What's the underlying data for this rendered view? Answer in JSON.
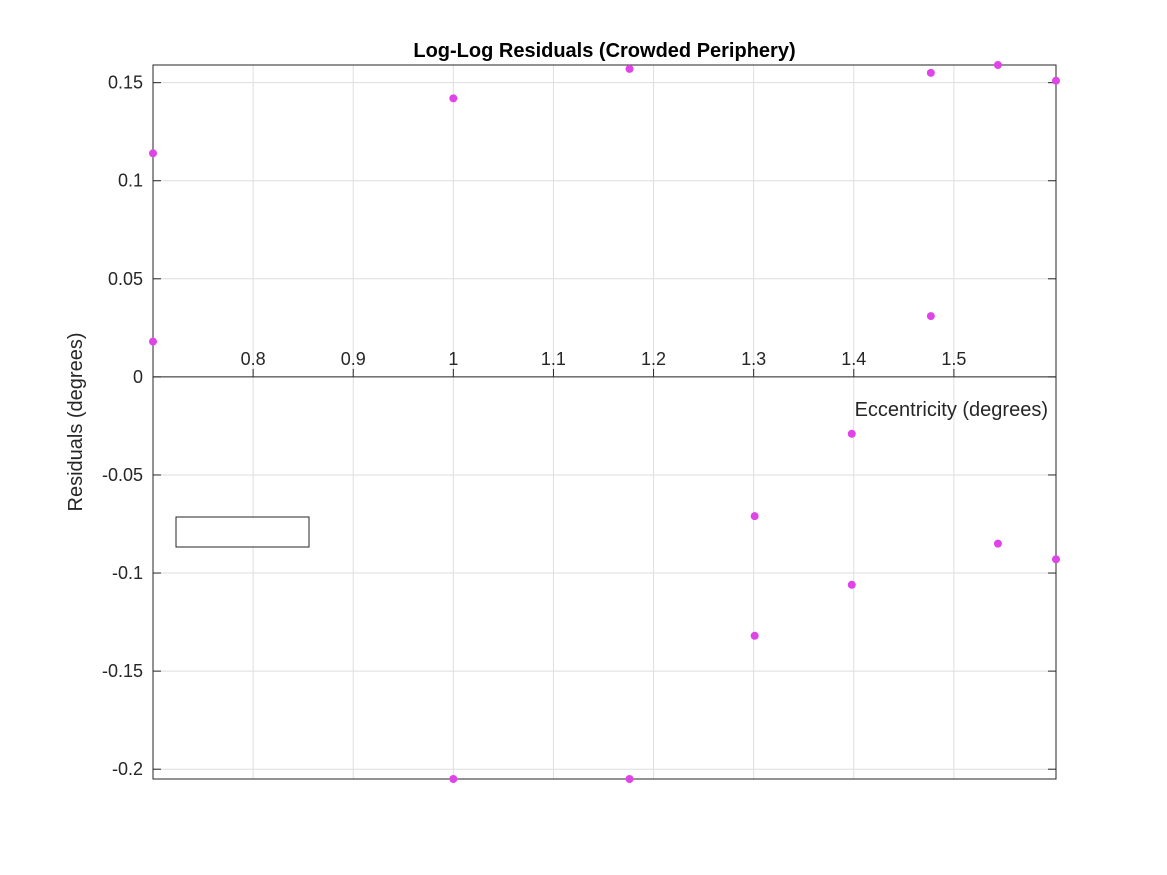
{
  "chart_data": {
    "type": "scatter",
    "title": "Log-Log Residuals (Crowded Periphery)",
    "xlabel": "Eccentricity (degrees)",
    "ylabel": "Residuals (degrees)",
    "xlim": [
      0.7,
      1.602
    ],
    "ylim": [
      -0.205,
      0.159
    ],
    "xticks": [
      0.8,
      0.9,
      1,
      1.1,
      1.2,
      1.3,
      1.4,
      1.5
    ],
    "xtick_labels": [
      "0.8",
      "0.9",
      "1",
      "1.1",
      "1.2",
      "1.3",
      "1.4",
      "1.5"
    ],
    "yticks": [
      -0.2,
      -0.15,
      -0.1,
      -0.05,
      0,
      0.05,
      0.1,
      0.15
    ],
    "ytick_labels": [
      "-0.2",
      "-0.15",
      "-0.1",
      "-0.05",
      "0",
      "0.05",
      "0.1",
      "0.15"
    ],
    "grid": true,
    "x_axis_location": "origin",
    "legend": {
      "placement": "left",
      "entries": []
    },
    "marker_color": "#e044e8",
    "series": [
      {
        "points": [
          [
            0.7,
            0.114
          ],
          [
            0.7,
            0.018
          ],
          [
            1.0,
            0.142
          ],
          [
            1.0,
            -0.205
          ],
          [
            1.176,
            0.157
          ],
          [
            1.176,
            -0.205
          ],
          [
            1.301,
            -0.071
          ],
          [
            1.301,
            -0.132
          ],
          [
            1.398,
            -0.029
          ],
          [
            1.398,
            -0.106
          ],
          [
            1.477,
            0.155
          ],
          [
            1.477,
            0.031
          ],
          [
            1.544,
            0.159
          ],
          [
            1.544,
            -0.085
          ],
          [
            1.602,
            0.151
          ],
          [
            1.602,
            -0.093
          ]
        ]
      }
    ]
  }
}
